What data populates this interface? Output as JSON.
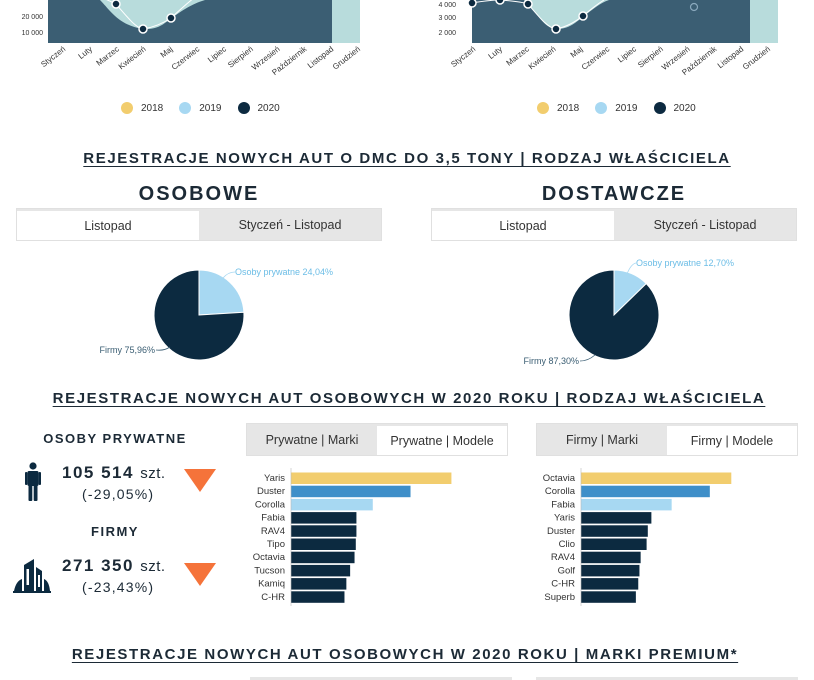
{
  "colors": {
    "y2018": "#f2cd6e",
    "y2019": "#a7d8f2",
    "y2020": "#0c2a40",
    "area_dark": "#3b5e73",
    "area_light": "#b8dcdc",
    "bar_yellow": "#f2cd6e",
    "bar_blue": "#3f8fc9",
    "bar_light": "#a7d8f2",
    "bar_dark": "#0c2a40",
    "arrow": "#f5733a"
  },
  "top_left_chart": {
    "y_ticks": [
      "20 000",
      "10 000"
    ],
    "months": [
      "Styczeń",
      "Luty",
      "Marzec",
      "Kwiecień",
      "Maj",
      "Czerwiec",
      "Lipiec",
      "Sierpień",
      "Wrzesień",
      "Październik",
      "Listopad",
      "Grudzień"
    ],
    "legend": [
      "2018",
      "2019",
      "2020"
    ]
  },
  "top_right_chart": {
    "y_ticks": [
      "4 000",
      "3 000",
      "2 000"
    ],
    "months": [
      "Styczeń",
      "Luty",
      "Marzec",
      "Kwiecień",
      "Maj",
      "Czerwiec",
      "Lipiec",
      "Sierpień",
      "Wrzesień",
      "Październik",
      "Listopad",
      "Grudzień"
    ],
    "legend": [
      "2018",
      "2019",
      "2020"
    ]
  },
  "section1": {
    "title": "REJESTRACJE NOWYCH AUT O DMC DO 3,5 TONY | RODZAJ WŁAŚCICIELA",
    "left_head": "OSOBOWE",
    "right_head": "DOSTAWCZE",
    "tab_a": "Listopad",
    "tab_b": "Styczeń - Listopad"
  },
  "section2": {
    "title": "REJESTRACJE NOWYCH AUT OSOBOWYCH W 2020 ROKU | RODZAJ WŁAŚCICIELA",
    "private_label": "OSOBY PRYWATNE",
    "private_value": "105 514",
    "private_pct": "(-29,05%)",
    "firms_label": "FIRMY",
    "firms_value": "271 350",
    "firms_pct": "(-23,43%)",
    "unit": "szt.",
    "tabs_left": [
      "Prywatne | Marki",
      "Prywatne | Modele"
    ],
    "tabs_right": [
      "Firmy | Marki",
      "Firmy | Modele"
    ]
  },
  "section3": {
    "title": "REJESTRACJE NOWYCH AUT OSOBOWYCH W 2020 ROKU | MARKI PREMIUM*"
  },
  "chart_data": [
    {
      "type": "pie",
      "chart": "osobowe-listopad",
      "slices": [
        {
          "label": "Osoby prywatne 24,04%",
          "value": 24.04,
          "color": "#a7d8f2"
        },
        {
          "label": "Firmy 75,96%",
          "value": 75.96,
          "color": "#0c2a40"
        }
      ]
    },
    {
      "type": "pie",
      "chart": "dostawcze-listopad",
      "slices": [
        {
          "label": "Osoby prywatne 12,70%",
          "value": 12.7,
          "color": "#a7d8f2"
        },
        {
          "label": "Firmy 87,30%",
          "value": 87.3,
          "color": "#0c2a40"
        }
      ]
    },
    {
      "type": "bar",
      "chart": "prywatne-modele",
      "orientation": "horizontal",
      "categories": [
        "Yaris",
        "Duster",
        "Corolla",
        "Fabia",
        "RAV4",
        "Tipo",
        "Octavia",
        "Tucson",
        "Kamiq",
        "C-HR"
      ],
      "values": [
        5100,
        3800,
        2600,
        2080,
        2080,
        2060,
        2020,
        1880,
        1760,
        1700
      ],
      "xlim": [
        0,
        5500
      ]
    },
    {
      "type": "bar",
      "chart": "firmy-modele",
      "orientation": "horizontal",
      "categories": [
        "Octavia",
        "Corolla",
        "Fabia",
        "Yaris",
        "Duster",
        "Clio",
        "RAV4",
        "Golf",
        "C-HR",
        "Superb"
      ],
      "values": [
        12600,
        10800,
        7600,
        5900,
        5600,
        5500,
        5000,
        4900,
        4800,
        4600
      ],
      "xlim": [
        0,
        14000
      ]
    }
  ]
}
